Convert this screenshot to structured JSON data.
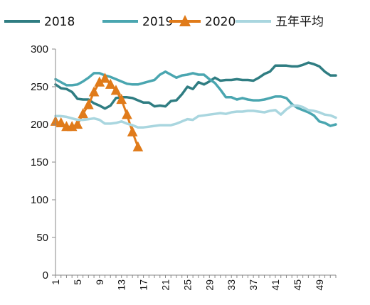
{
  "chart_data": {
    "type": "line",
    "title": "",
    "xlabel": "",
    "ylabel": "",
    "ylim": [
      0,
      300
    ],
    "yticks": [
      0,
      50,
      100,
      150,
      200,
      250,
      300
    ],
    "xlim": [
      1,
      52
    ],
    "xticks": [
      1,
      5,
      9,
      13,
      17,
      21,
      25,
      29,
      33,
      37,
      41,
      45,
      49
    ],
    "legend_position": "top",
    "grid": false,
    "series": [
      {
        "name": "2018",
        "color": "#2f7d82",
        "marker": "none",
        "values": [
          253,
          248,
          247,
          243,
          234,
          233,
          233,
          228,
          225,
          221,
          225,
          235,
          236,
          236,
          235,
          232,
          229,
          229,
          224,
          225,
          224,
          231,
          232,
          240,
          250,
          247,
          256,
          253,
          257,
          262,
          258,
          259,
          259,
          260,
          259,
          259,
          258,
          262,
          267,
          270,
          278,
          278,
          278,
          277,
          277,
          279,
          282,
          280,
          277,
          270,
          265,
          265
        ]
      },
      {
        "name": "2019",
        "color": "#4aa6b0",
        "marker": "none",
        "values": [
          260,
          256,
          252,
          252,
          253,
          257,
          262,
          268,
          268,
          265,
          263,
          260,
          257,
          254,
          253,
          253,
          255,
          257,
          259,
          266,
          270,
          266,
          262,
          265,
          266,
          268,
          266,
          266,
          260,
          255,
          246,
          236,
          236,
          233,
          235,
          233,
          232,
          232,
          233,
          235,
          237,
          237,
          235,
          227,
          222,
          219,
          216,
          212,
          204,
          202,
          198,
          200
        ]
      },
      {
        "name": "2020",
        "color": "#e07b1a",
        "marker": "triangle",
        "values": [
          204,
          202,
          197,
          197,
          200,
          214,
          226,
          243,
          256,
          261,
          253,
          245,
          233,
          213,
          190,
          170
        ]
      },
      {
        "name": "五年平均",
        "color": "#a9d6df",
        "marker": "none",
        "values": [
          211,
          211,
          210,
          208,
          206,
          206,
          207,
          208,
          206,
          201,
          201,
          202,
          204,
          201,
          199,
          196,
          196,
          197,
          198,
          199,
          199,
          199,
          201,
          204,
          207,
          206,
          211,
          212,
          213,
          214,
          215,
          214,
          216,
          217,
          217,
          218,
          218,
          217,
          216,
          218,
          219,
          213,
          220,
          225,
          225,
          223,
          219,
          218,
          216,
          213,
          212,
          209
        ]
      }
    ]
  }
}
